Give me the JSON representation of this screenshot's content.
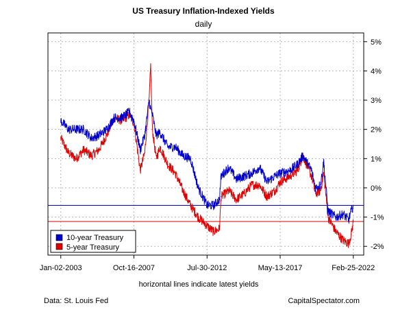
{
  "chart_data": {
    "type": "line",
    "title": "US Treasury Inflation-Indexed Yields",
    "subtitle": "daily",
    "xlabel": "horizontal lines indicate latest yields",
    "ylabel": "",
    "x_tick_labels": [
      "Jan-02-2003",
      "Oct-16-2007",
      "Jul-30-2012",
      "May-13-2017",
      "Feb-25-2022"
    ],
    "y_tick_labels": [
      "5%",
      "4%",
      "3%",
      "2%",
      "1%",
      "0%",
      "-1%",
      "-2%"
    ],
    "y_tick_values": [
      5,
      4,
      3,
      2,
      1,
      0,
      -1,
      -2
    ],
    "ylim": [
      -2.3,
      5.3
    ],
    "xlim": [
      "2002-03-01",
      "2022-11-01"
    ],
    "grid": true,
    "legend_position": "bottom-left",
    "series": [
      {
        "name": "10-year Treasury",
        "color": "#0000cc",
        "x": [
          "2003-01-02",
          "2003-07-01",
          "2004-01-02",
          "2004-07-01",
          "2005-01-03",
          "2005-07-01",
          "2006-01-03",
          "2006-07-03",
          "2007-01-02",
          "2007-07-02",
          "2007-10-16",
          "2008-03-17",
          "2008-07-01",
          "2008-10-15",
          "2008-11-20",
          "2008-12-31",
          "2009-04-01",
          "2009-07-01",
          "2010-01-04",
          "2010-07-01",
          "2011-01-03",
          "2011-07-01",
          "2012-01-03",
          "2012-07-30",
          "2013-01-02",
          "2013-05-22",
          "2013-07-01",
          "2014-01-02",
          "2014-07-01",
          "2015-01-02",
          "2015-07-01",
          "2016-01-04",
          "2016-07-01",
          "2017-01-03",
          "2017-05-13",
          "2018-01-02",
          "2018-07-02",
          "2018-11-08",
          "2019-06-03",
          "2019-09-03",
          "2020-01-02",
          "2020-03-19",
          "2020-07-01",
          "2021-01-04",
          "2021-07-01",
          "2021-11-04",
          "2022-01-03",
          "2022-02-25"
        ],
        "values": [
          2.3,
          2.0,
          2.0,
          2.0,
          1.7,
          1.8,
          2.0,
          2.4,
          2.4,
          2.6,
          2.3,
          1.3,
          1.8,
          3.0,
          2.7,
          2.5,
          1.8,
          1.9,
          1.4,
          1.4,
          1.1,
          1.0,
          0.0,
          -0.6,
          -0.6,
          -0.4,
          0.4,
          0.7,
          0.3,
          0.4,
          0.5,
          0.7,
          0.2,
          0.4,
          0.5,
          0.6,
          0.8,
          1.1,
          0.6,
          0.0,
          0.1,
          0.9,
          -0.8,
          -1.0,
          -0.9,
          -1.1,
          -0.8,
          -0.6
        ]
      },
      {
        "name": "5-year Treasury",
        "color": "#dd0000",
        "x": [
          "2003-01-02",
          "2003-07-01",
          "2004-01-02",
          "2004-07-01",
          "2005-01-03",
          "2005-07-01",
          "2006-01-03",
          "2006-07-03",
          "2007-01-02",
          "2007-07-02",
          "2007-10-16",
          "2008-03-17",
          "2008-07-01",
          "2008-10-15",
          "2008-11-20",
          "2008-12-31",
          "2009-04-01",
          "2009-07-01",
          "2010-01-04",
          "2010-07-01",
          "2011-01-03",
          "2011-07-01",
          "2012-01-03",
          "2012-07-30",
          "2013-01-02",
          "2013-05-22",
          "2013-07-01",
          "2014-01-02",
          "2014-07-01",
          "2015-01-02",
          "2015-07-01",
          "2016-01-04",
          "2016-07-01",
          "2017-01-03",
          "2017-05-13",
          "2018-01-02",
          "2018-07-02",
          "2018-11-08",
          "2019-06-03",
          "2019-09-03",
          "2020-01-02",
          "2020-03-19",
          "2020-07-01",
          "2021-01-04",
          "2021-07-01",
          "2021-11-04",
          "2022-01-03",
          "2022-02-25"
        ],
        "values": [
          1.7,
          1.2,
          1.0,
          1.3,
          1.1,
          1.3,
          1.8,
          2.4,
          2.3,
          2.5,
          2.2,
          0.6,
          1.2,
          3.0,
          4.2,
          2.0,
          1.0,
          1.4,
          0.8,
          0.5,
          -0.1,
          -0.6,
          -1.0,
          -1.3,
          -1.5,
          -1.4,
          -0.3,
          -0.1,
          -0.4,
          -0.2,
          0.1,
          0.1,
          -0.3,
          -0.1,
          0.2,
          0.4,
          0.6,
          1.1,
          0.4,
          -0.2,
          -0.1,
          0.5,
          -1.0,
          -1.5,
          -1.8,
          -1.9,
          -1.6,
          -1.15
        ]
      }
    ],
    "latest_lines": [
      {
        "series": "10-year Treasury",
        "value": -0.6,
        "color": "#0000cc"
      },
      {
        "series": "5-year Treasury",
        "value": -1.15,
        "color": "#dd0000"
      }
    ]
  },
  "footer": {
    "source": "Data: St. Louis Fed",
    "credit": "CapitalSpectator.com"
  }
}
